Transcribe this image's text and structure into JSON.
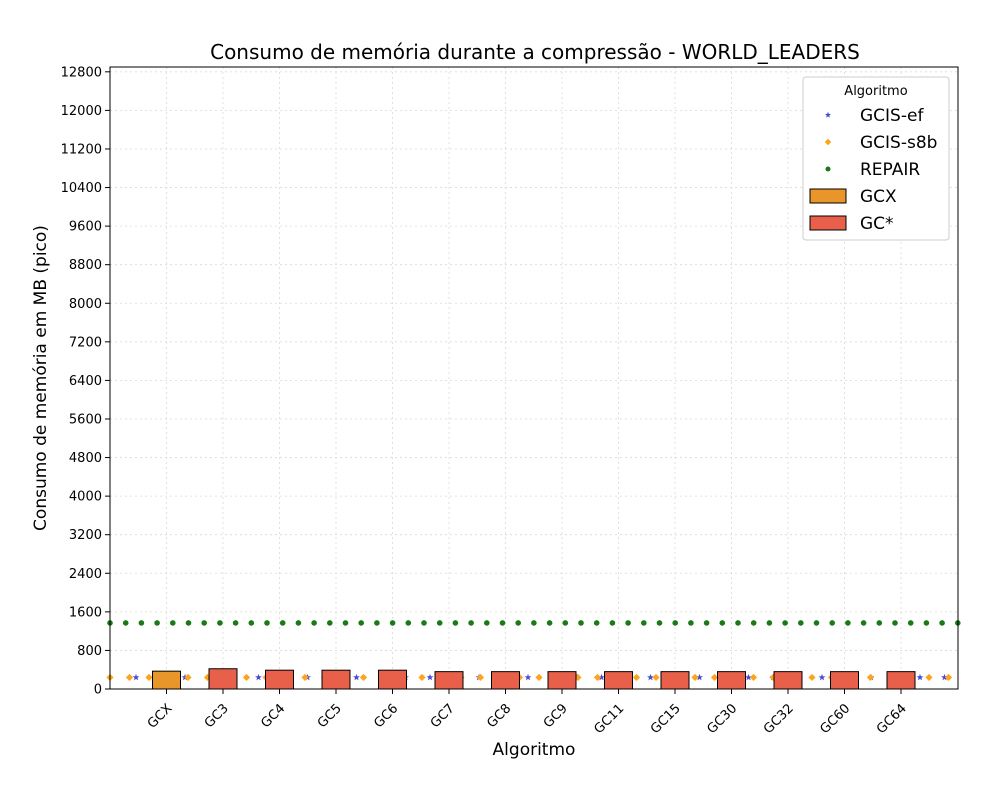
{
  "chart_data": {
    "type": "bar",
    "title": "Consumo de memória durante a compressão -  WORLD_LEADERS",
    "xlabel": "Algoritmo",
    "ylabel": "Consumo de memória em MB (pico)",
    "ylim": [
      0,
      12900
    ],
    "yticks": [
      0,
      800,
      1600,
      2400,
      3200,
      4000,
      4800,
      5600,
      6400,
      7200,
      8000,
      8800,
      9600,
      10400,
      11200,
      12000,
      12800
    ],
    "grid": true,
    "legend_title": "Algoritmo",
    "legend_position": "top-right",
    "categories": [
      "GCX",
      "GC3",
      "GC4",
      "GC5",
      "GC6",
      "GC7",
      "GC8",
      "GC9",
      "GC11",
      "GC15",
      "GC30",
      "GC32",
      "GC60",
      "GC64"
    ],
    "bar_series": [
      {
        "name": "GCX",
        "color": "#e8962a",
        "values": [
          370,
          null,
          null,
          null,
          null,
          null,
          null,
          null,
          null,
          null,
          null,
          null,
          null,
          null
        ]
      },
      {
        "name": "GC*",
        "color": "#e8604a",
        "values": [
          null,
          420,
          390,
          390,
          390,
          360,
          360,
          360,
          360,
          360,
          360,
          360,
          360,
          360
        ]
      }
    ],
    "reference_series": [
      {
        "name": "GCIS-ef",
        "marker": "star",
        "color": "#4a4ad8",
        "value": 240
      },
      {
        "name": "GCIS-s8b",
        "marker": "diamond",
        "color": "#ffa31a",
        "value": 240
      },
      {
        "name": "REPAIR",
        "marker": "circle",
        "color": "#1a7a1a",
        "value": 1370
      }
    ]
  }
}
